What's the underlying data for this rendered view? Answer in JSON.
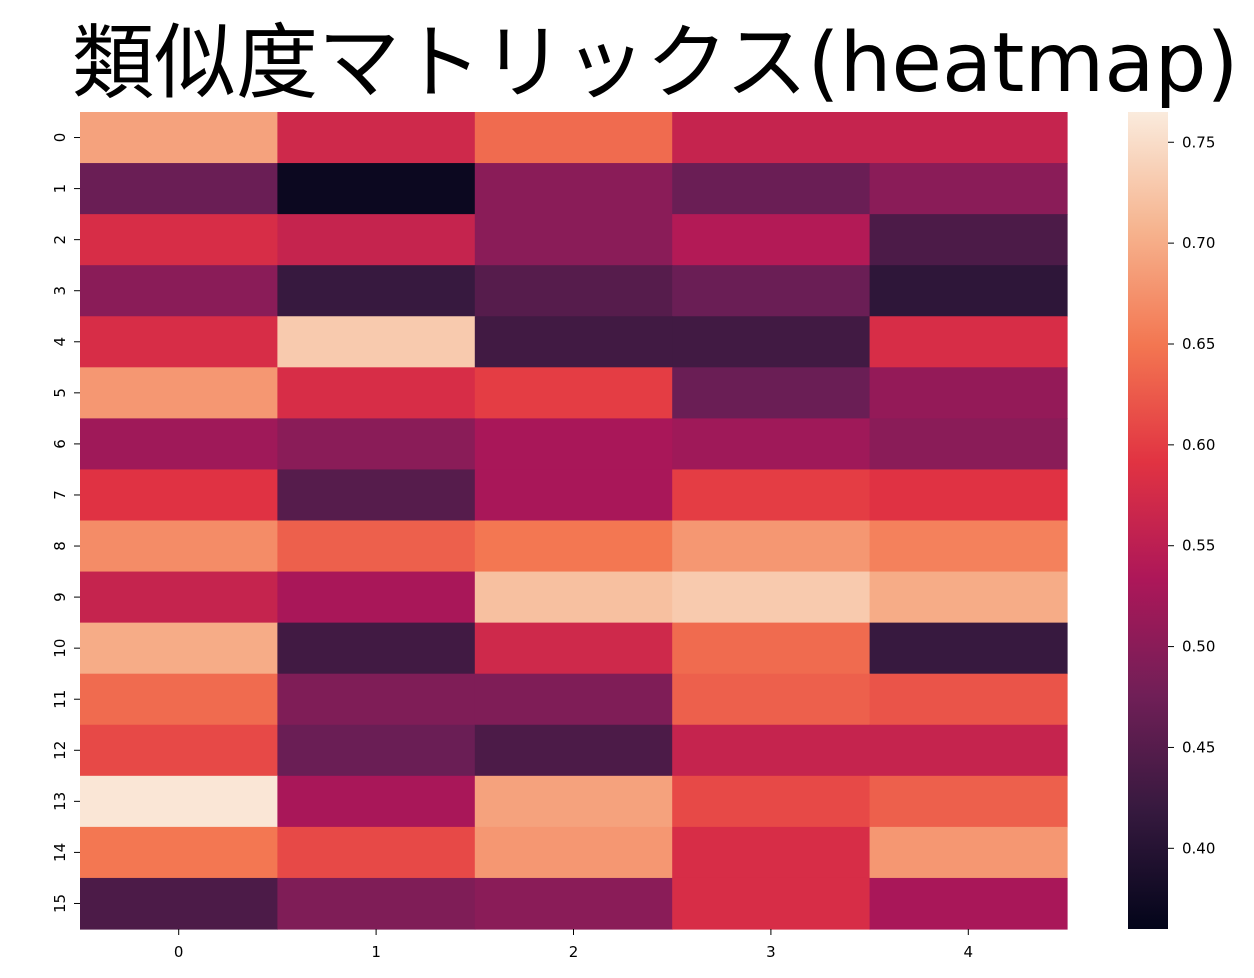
{
  "title_main": "類似度",
  "title_rest": "マトリックス(heatmap)",
  "chart_data": {
    "type": "heatmap",
    "title": "類似度マトリックス(heatmap)",
    "x_tick_labels": [
      "0",
      "1",
      "2",
      "3",
      "4"
    ],
    "y_tick_labels": [
      "0",
      "1",
      "2",
      "3",
      "4",
      "5",
      "6",
      "7",
      "8",
      "9",
      "10",
      "11",
      "12",
      "13",
      "14",
      "15"
    ],
    "values": [
      [
        0.69,
        0.57,
        0.64,
        0.56,
        0.56
      ],
      [
        0.47,
        0.37,
        0.5,
        0.47,
        0.5
      ],
      [
        0.58,
        0.56,
        0.5,
        0.54,
        0.44
      ],
      [
        0.5,
        0.42,
        0.45,
        0.47,
        0.41
      ],
      [
        0.58,
        0.73,
        0.43,
        0.43,
        0.58
      ],
      [
        0.68,
        0.58,
        0.6,
        0.47,
        0.51
      ],
      [
        0.52,
        0.5,
        0.53,
        0.52,
        0.5
      ],
      [
        0.59,
        0.45,
        0.53,
        0.6,
        0.59
      ],
      [
        0.67,
        0.63,
        0.65,
        0.68,
        0.66
      ],
      [
        0.56,
        0.53,
        0.72,
        0.73,
        0.7
      ],
      [
        0.7,
        0.43,
        0.57,
        0.64,
        0.42
      ],
      [
        0.64,
        0.49,
        0.49,
        0.63,
        0.62
      ],
      [
        0.61,
        0.47,
        0.44,
        0.56,
        0.56
      ],
      [
        0.76,
        0.53,
        0.69,
        0.61,
        0.63
      ],
      [
        0.65,
        0.61,
        0.68,
        0.58,
        0.68
      ],
      [
        0.44,
        0.49,
        0.5,
        0.58,
        0.53
      ]
    ],
    "colorbar": {
      "ticks": [
        0.4,
        0.45,
        0.5,
        0.55,
        0.6,
        0.65,
        0.7,
        0.75
      ],
      "tick_labels": [
        "0.40",
        "0.45",
        "0.50",
        "0.55",
        "0.60",
        "0.65",
        "0.70",
        "0.75"
      ],
      "min": 0.36,
      "max": 0.765
    },
    "colormap": [
      "#03051a",
      "#35193e",
      "#701f57",
      "#ad1759",
      "#e13342",
      "#f37651",
      "#f6b48f",
      "#faebdd"
    ]
  }
}
